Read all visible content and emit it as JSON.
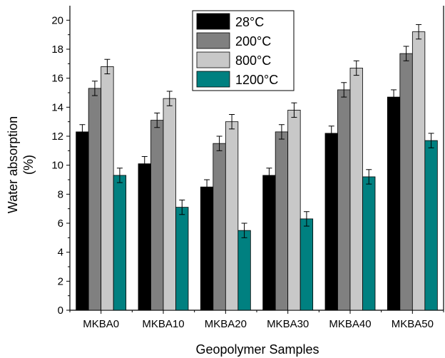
{
  "chart_data": {
    "type": "bar",
    "title": "",
    "xlabel": "Geopolymer Samples",
    "ylabel_line1": "Water absorption",
    "ylabel_line2": "(%)",
    "ylim": [
      0,
      21
    ],
    "yticks": [
      0,
      2,
      4,
      6,
      8,
      10,
      12,
      14,
      16,
      18,
      20
    ],
    "categories": [
      "MKBA0",
      "MKBA10",
      "MKBA20",
      "MKBA30",
      "MKBA40",
      "MKBA50"
    ],
    "series": [
      {
        "name": "28°C",
        "color": "#000000",
        "values": [
          12.3,
          10.1,
          8.5,
          9.3,
          12.2,
          14.7
        ],
        "errors": [
          0.5,
          0.5,
          0.5,
          0.5,
          0.5,
          0.5
        ]
      },
      {
        "name": "200°C",
        "color": "#808080",
        "values": [
          15.3,
          13.1,
          11.5,
          12.3,
          15.2,
          17.7
        ],
        "errors": [
          0.5,
          0.5,
          0.5,
          0.5,
          0.5,
          0.5
        ]
      },
      {
        "name": "800°C",
        "color": "#c8c8c8",
        "values": [
          16.8,
          14.6,
          13.0,
          13.8,
          16.7,
          19.2
        ],
        "errors": [
          0.5,
          0.5,
          0.5,
          0.5,
          0.5,
          0.5
        ]
      },
      {
        "name": "1200°C",
        "color": "#008080",
        "values": [
          9.3,
          7.1,
          5.5,
          6.3,
          9.2,
          11.7
        ],
        "errors": [
          0.5,
          0.5,
          0.5,
          0.5,
          0.5,
          0.5
        ]
      }
    ],
    "legend_position": "top-center",
    "grid": false
  }
}
